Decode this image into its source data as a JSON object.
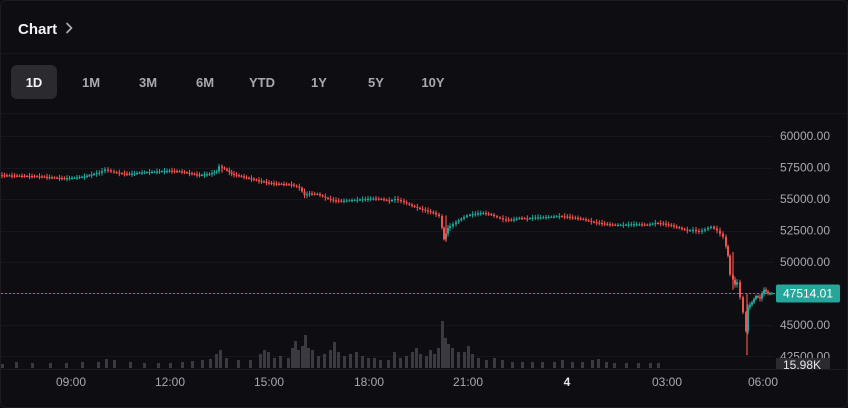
{
  "header": {
    "title": "Chart",
    "chevron_icon": "chevron-right-icon"
  },
  "tabs": [
    {
      "label": "1D",
      "active": true
    },
    {
      "label": "1M",
      "active": false
    },
    {
      "label": "3M",
      "active": false
    },
    {
      "label": "6M",
      "active": false
    },
    {
      "label": "YTD",
      "active": false
    },
    {
      "label": "1Y",
      "active": false
    },
    {
      "label": "5Y",
      "active": false
    },
    {
      "label": "10Y",
      "active": false
    }
  ],
  "colors": {
    "up": "#26a69a",
    "down": "#ef5350",
    "price_line": "#26a69a",
    "price_badge": "#26a69a",
    "volume": "#3b3a40",
    "axis_text": "#a9a8b0"
  },
  "chart_data": {
    "type": "candlestick",
    "y_axis": {
      "range": [
        41500,
        61200
      ],
      "ticks": [
        "60000.00",
        "57500.00",
        "55000.00",
        "52500.00",
        "50000.00",
        "47500.00",
        "45000.00",
        "42500.00"
      ]
    },
    "x_axis": {
      "ticks": [
        {
          "label": "09:00",
          "bold": false
        },
        {
          "label": "12:00",
          "bold": false
        },
        {
          "label": "15:00",
          "bold": false
        },
        {
          "label": "18:00",
          "bold": false
        },
        {
          "label": "21:00",
          "bold": false
        },
        {
          "label": "4",
          "bold": true
        },
        {
          "label": "03:00",
          "bold": false
        },
        {
          "label": "06:00",
          "bold": false
        }
      ]
    },
    "last_price": {
      "value": 47514.01,
      "label": "47514.01"
    },
    "volume_label": "15.98K",
    "price_path": [
      [
        0,
        56900
      ],
      [
        20,
        56850
      ],
      [
        40,
        56800
      ],
      [
        55,
        56700
      ],
      [
        65,
        56650
      ],
      [
        75,
        56700
      ],
      [
        85,
        56800
      ],
      [
        92,
        56950
      ],
      [
        100,
        57100
      ],
      [
        106,
        57350
      ],
      [
        112,
        57200
      ],
      [
        120,
        57050
      ],
      [
        130,
        57000
      ],
      [
        140,
        57100
      ],
      [
        150,
        57150
      ],
      [
        160,
        57200
      ],
      [
        170,
        57250
      ],
      [
        180,
        57200
      ],
      [
        190,
        57050
      ],
      [
        200,
        56900
      ],
      [
        210,
        57000
      ],
      [
        217,
        57200
      ],
      [
        220,
        57600
      ],
      [
        225,
        57400
      ],
      [
        232,
        57000
      ],
      [
        242,
        56800
      ],
      [
        252,
        56600
      ],
      [
        262,
        56400
      ],
      [
        272,
        56250
      ],
      [
        282,
        56200
      ],
      [
        292,
        56150
      ],
      [
        300,
        55900
      ],
      [
        305,
        55300
      ],
      [
        310,
        55450
      ],
      [
        318,
        55400
      ],
      [
        326,
        55100
      ],
      [
        334,
        54900
      ],
      [
        342,
        54850
      ],
      [
        350,
        54900
      ],
      [
        358,
        54950
      ],
      [
        366,
        55000
      ],
      [
        374,
        55050
      ],
      [
        382,
        55000
      ],
      [
        390,
        54850
      ],
      [
        396,
        55000
      ],
      [
        402,
        54850
      ],
      [
        410,
        54550
      ],
      [
        418,
        54300
      ],
      [
        426,
        54100
      ],
      [
        434,
        53900
      ],
      [
        440,
        53650
      ],
      [
        444,
        51800
      ],
      [
        448,
        52700
      ],
      [
        454,
        53000
      ],
      [
        462,
        53450
      ],
      [
        468,
        53700
      ],
      [
        476,
        53850
      ],
      [
        484,
        53900
      ],
      [
        492,
        53750
      ],
      [
        498,
        53550
      ],
      [
        504,
        53400
      ],
      [
        512,
        53350
      ],
      [
        520,
        53500
      ],
      [
        528,
        53450
      ],
      [
        536,
        53550
      ],
      [
        544,
        53550
      ],
      [
        552,
        53600
      ],
      [
        560,
        53650
      ],
      [
        568,
        53600
      ],
      [
        576,
        53500
      ],
      [
        584,
        53400
      ],
      [
        592,
        53200
      ],
      [
        600,
        53100
      ],
      [
        608,
        53000
      ],
      [
        616,
        52950
      ],
      [
        624,
        52950
      ],
      [
        632,
        53000
      ],
      [
        640,
        53000
      ],
      [
        648,
        52950
      ],
      [
        656,
        53100
      ],
      [
        664,
        53050
      ],
      [
        672,
        52900
      ],
      [
        680,
        52700
      ],
      [
        688,
        52500
      ],
      [
        694,
        52550
      ],
      [
        700,
        52400
      ],
      [
        706,
        52600
      ],
      [
        712,
        52800
      ],
      [
        718,
        52500
      ],
      [
        724,
        52000
      ],
      [
        728,
        50500
      ],
      [
        731,
        49000
      ],
      [
        735,
        48200
      ],
      [
        738,
        48400
      ],
      [
        741,
        47200
      ],
      [
        744,
        46000
      ],
      [
        746,
        44500
      ],
      [
        748,
        46400
      ],
      [
        752,
        46800
      ],
      [
        756,
        47300
      ],
      [
        760,
        47100
      ],
      [
        764,
        47800
      ],
      [
        768,
        47500
      ],
      [
        772,
        47514
      ]
    ],
    "wick_spikes": [
      {
        "x": 444,
        "low": 51600,
        "high": 53700
      },
      {
        "x": 745,
        "low": 42600,
        "high": 47500
      },
      {
        "x": 731,
        "low": 47800,
        "high": 50800
      },
      {
        "x": 220,
        "low": 57100,
        "high": 57700
      }
    ],
    "volume_bars": [
      [
        0,
        4
      ],
      [
        14,
        6
      ],
      [
        30,
        5
      ],
      [
        48,
        5
      ],
      [
        64,
        5
      ],
      [
        80,
        6
      ],
      [
        96,
        6
      ],
      [
        104,
        9
      ],
      [
        112,
        8
      ],
      [
        128,
        6
      ],
      [
        142,
        5
      ],
      [
        156,
        5
      ],
      [
        168,
        5
      ],
      [
        180,
        6
      ],
      [
        190,
        7
      ],
      [
        200,
        8
      ],
      [
        208,
        9
      ],
      [
        214,
        14
      ],
      [
        218,
        18
      ],
      [
        224,
        10
      ],
      [
        236,
        8
      ],
      [
        248,
        8
      ],
      [
        258,
        14
      ],
      [
        262,
        18
      ],
      [
        266,
        16
      ],
      [
        272,
        10
      ],
      [
        278,
        12
      ],
      [
        286,
        10
      ],
      [
        290,
        20
      ],
      [
        293,
        27
      ],
      [
        296,
        18
      ],
      [
        300,
        22
      ],
      [
        303,
        33
      ],
      [
        306,
        20
      ],
      [
        310,
        18
      ],
      [
        316,
        12
      ],
      [
        322,
        14
      ],
      [
        328,
        18
      ],
      [
        332,
        26
      ],
      [
        336,
        16
      ],
      [
        342,
        12
      ],
      [
        348,
        14
      ],
      [
        354,
        16
      ],
      [
        360,
        12
      ],
      [
        366,
        10
      ],
      [
        372,
        10
      ],
      [
        378,
        8
      ],
      [
        386,
        8
      ],
      [
        392,
        16
      ],
      [
        398,
        10
      ],
      [
        404,
        12
      ],
      [
        410,
        16
      ],
      [
        414,
        20
      ],
      [
        418,
        14
      ],
      [
        424,
        12
      ],
      [
        428,
        18
      ],
      [
        432,
        14
      ],
      [
        436,
        20
      ],
      [
        440,
        47
      ],
      [
        443,
        30
      ],
      [
        446,
        24
      ],
      [
        450,
        20
      ],
      [
        456,
        16
      ],
      [
        462,
        16
      ],
      [
        466,
        22
      ],
      [
        470,
        14
      ],
      [
        476,
        10
      ],
      [
        484,
        8
      ],
      [
        492,
        10
      ],
      [
        500,
        8
      ],
      [
        510,
        6
      ],
      [
        520,
        6
      ],
      [
        530,
        6
      ],
      [
        540,
        6
      ],
      [
        552,
        6
      ],
      [
        560,
        8
      ],
      [
        570,
        6
      ],
      [
        580,
        6
      ],
      [
        590,
        8
      ],
      [
        596,
        9
      ],
      [
        604,
        6
      ],
      [
        612,
        5
      ],
      [
        624,
        5
      ],
      [
        636,
        5
      ],
      [
        648,
        5
      ],
      [
        656,
        5
      ]
    ]
  }
}
